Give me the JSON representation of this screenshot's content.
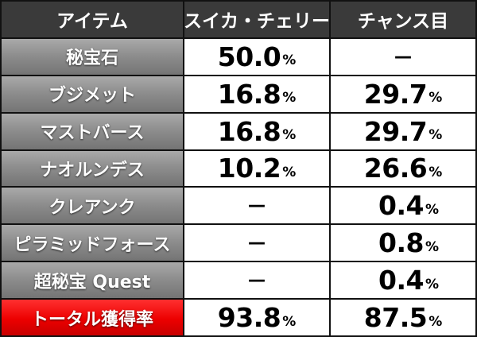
{
  "header": {
    "item": "アイテム",
    "col1": "スイカ・チェリー",
    "col2": "チャンス目"
  },
  "unit": "%",
  "dash": "－",
  "rows": [
    {
      "name": "秘宝石",
      "v1": "50.0",
      "v2": "－"
    },
    {
      "name": "ブジメット",
      "v1": "16.8",
      "v2": "29.7"
    },
    {
      "name": "マストバース",
      "v1": "16.8",
      "v2": "29.7"
    },
    {
      "name": "ナオルンデス",
      "v1": "10.2",
      "v2": "26.6"
    },
    {
      "name": "クレアンク",
      "v1": "－",
      "v2": "0.4"
    },
    {
      "name": "ピラミッドフォース",
      "v1": "－",
      "v2": "0.8"
    },
    {
      "name": "超秘宝 Quest",
      "v1": "－",
      "v2": "0.4"
    }
  ],
  "total": {
    "name": "トータル獲得率",
    "v1": "93.8",
    "v2": "87.5"
  },
  "colors": {
    "header_bg": "#3a3a3a",
    "item_bg": "#8e8e8e",
    "total_bg": "#ec0000"
  }
}
